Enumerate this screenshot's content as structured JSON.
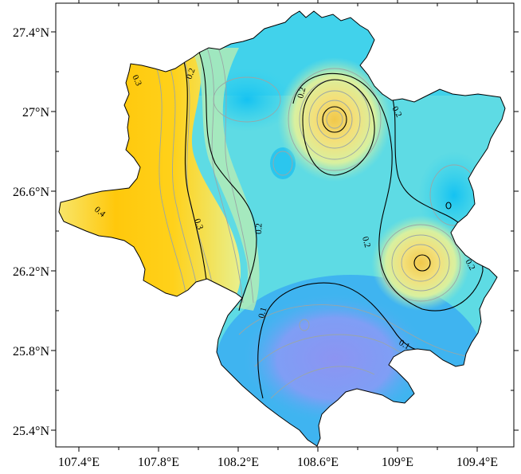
{
  "map": {
    "x_ticks": [
      "107.4°E",
      "107.8°E",
      "108.2°E",
      "108.6°E",
      "109°E",
      "109.4°E"
    ],
    "y_ticks": [
      "27.4°N",
      "27°N",
      "26.6°N",
      "26.2°N",
      "25.8°N",
      "25.4°N"
    ],
    "contour_labels": [
      "0.1",
      "0.1",
      "0.2",
      "0.2",
      "0.2",
      "0.2",
      "0.2",
      "0.2",
      "0.3",
      "0.3",
      "0.4"
    ],
    "colors": {
      "blue_low": "#7f9ef5",
      "cyan": "#2fd0ee",
      "aqua": "#66dde0",
      "pale_green": "#c8f0b0",
      "yellow": "#f5e37a",
      "orange": "#ffc80c",
      "outline": "#000000"
    }
  }
}
